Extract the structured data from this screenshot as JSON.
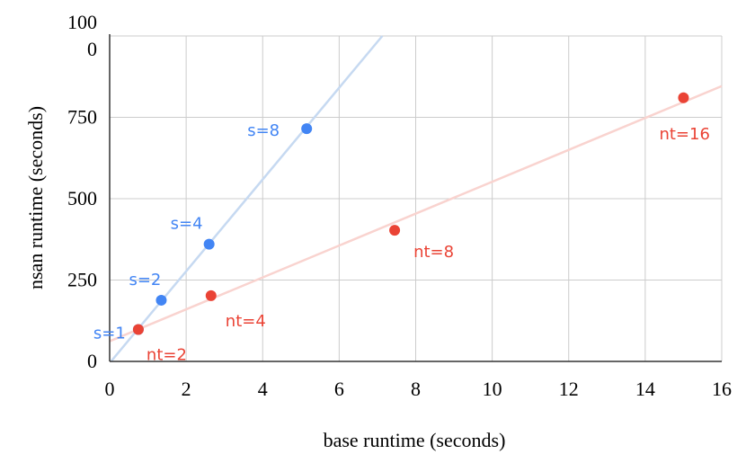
{
  "chart_data": {
    "type": "scatter",
    "title": "",
    "xlabel": "base runtime (seconds)",
    "ylabel": "nsan runtime (seconds)",
    "xlim": [
      0,
      16
    ],
    "ylim": [
      0,
      1000
    ],
    "x_ticks": [
      0,
      2,
      4,
      6,
      8,
      10,
      12,
      14,
      16
    ],
    "y_ticks": [
      0,
      250,
      500,
      750,
      1000
    ],
    "y_tick_labels": [
      "0",
      "250",
      "500",
      "750",
      "100\n0"
    ],
    "grid": true,
    "legend": "none",
    "series": [
      {
        "color": "#4285f4",
        "trendline_color": "#c6d9f1",
        "trendline": {
          "slope": 141,
          "intercept": -5
        },
        "points": [
          {
            "x": 0.75,
            "y": 98,
            "label": "s=1"
          },
          {
            "x": 1.35,
            "y": 188,
            "label": "s=2"
          },
          {
            "x": 2.6,
            "y": 360,
            "label": "s=4"
          },
          {
            "x": 5.15,
            "y": 715,
            "label": "s=8"
          }
        ]
      },
      {
        "color": "#ea4335",
        "trendline_color": "#f9d3cf",
        "trendline": {
          "slope": 49,
          "intercept": 62
        },
        "points": [
          {
            "x": 0.75,
            "y": 98,
            "label": "nt=2"
          },
          {
            "x": 2.65,
            "y": 202,
            "label": "nt=4"
          },
          {
            "x": 7.45,
            "y": 403,
            "label": "nt=8"
          },
          {
            "x": 15.0,
            "y": 810,
            "label": "nt=16"
          }
        ]
      }
    ]
  }
}
